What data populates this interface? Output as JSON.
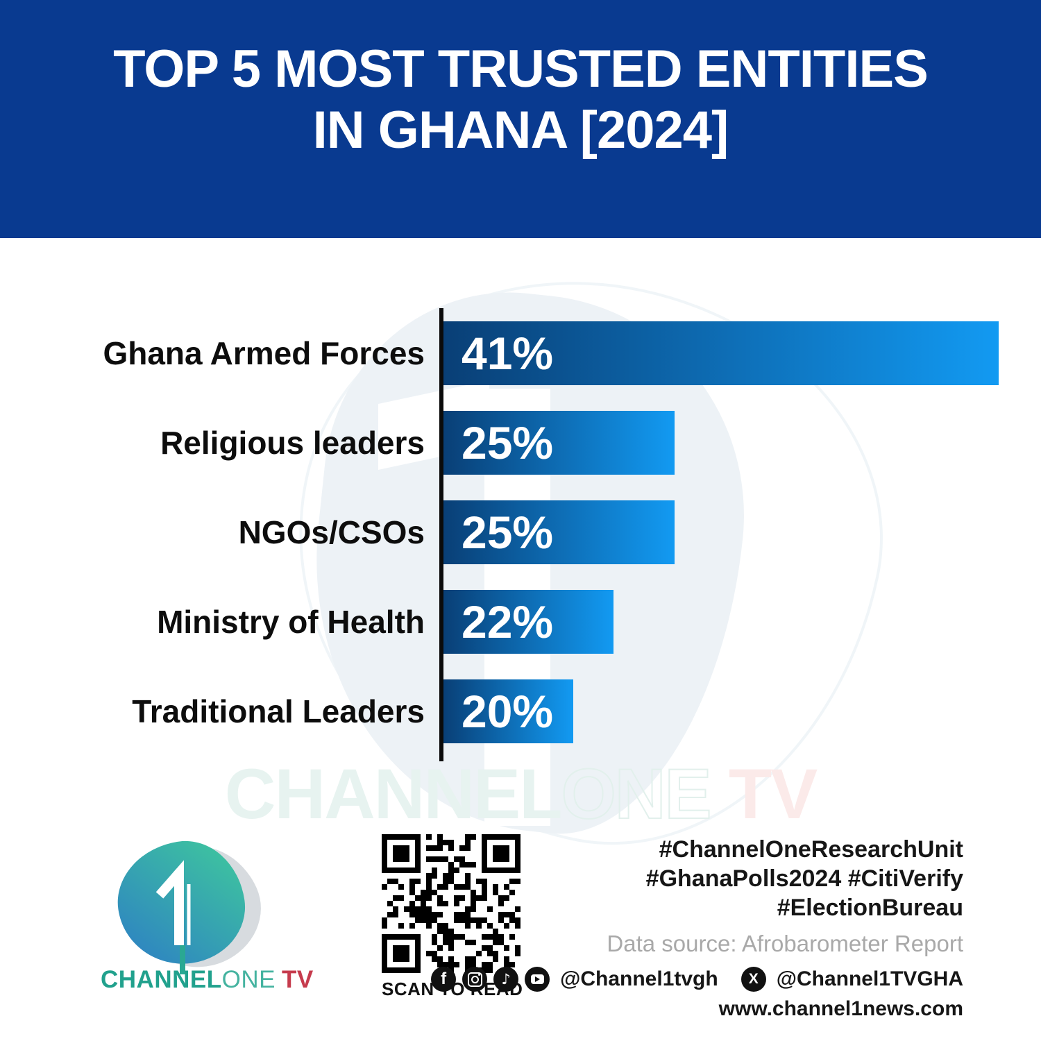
{
  "banner": {
    "title_line1": "TOP 5 MOST TRUSTED ENTITIES",
    "title_line2": "IN GHANA [2024]",
    "bg_color": "#093a90",
    "text_color": "#ffffff"
  },
  "chart_data": {
    "type": "bar",
    "orientation": "horizontal",
    "title": "TOP 5 MOST TRUSTED ENTITIES IN GHANA [2024]",
    "categories": [
      "Ghana Armed Forces",
      "Religious leaders",
      "NGOs/CSOs",
      "Ministry of Health",
      "Traditional Leaders"
    ],
    "values": [
      41,
      25,
      25,
      22,
      20
    ],
    "unit": "%",
    "bar_labels": [
      "41%",
      "25%",
      "25%",
      "22%",
      "20%"
    ],
    "bar_width_pct_of_track": [
      100,
      41.6,
      41.6,
      30.6,
      23.4
    ],
    "bar_gradient_start": "#093f76",
    "bar_gradient_end": "#129af2",
    "axis_color": "#0b0b0b",
    "value_label_color": "#ffffff",
    "category_label_color": "#0d0d0d",
    "gridlines": "off",
    "legend": "none"
  },
  "watermark": {
    "part1": "CHANNEL",
    "part2": "ONE",
    "part3": " TV"
  },
  "footer": {
    "logo": {
      "symbol": "1",
      "brand_part1": "CHANNEL",
      "brand_part2": "ONE",
      "brand_part3": "TV",
      "teal_color": "#21a18d",
      "red_color": "#c63b4d"
    },
    "qr_caption": "SCAN TO READ",
    "hashtags": [
      "#ChannelOneResearchUnit",
      "#GhanaPolls2024 #CitiVerify",
      "#ElectionBureau"
    ],
    "data_source": "Data source: Afrobarometer Report",
    "social": {
      "icons": [
        "facebook-icon",
        "instagram-icon",
        "tiktok-icon",
        "youtube-icon"
      ],
      "handle1": "@Channel1tvgh",
      "x_icon": "x-icon",
      "handle2": "@Channel1TVGHA"
    },
    "website": "www.channel1news.com"
  }
}
